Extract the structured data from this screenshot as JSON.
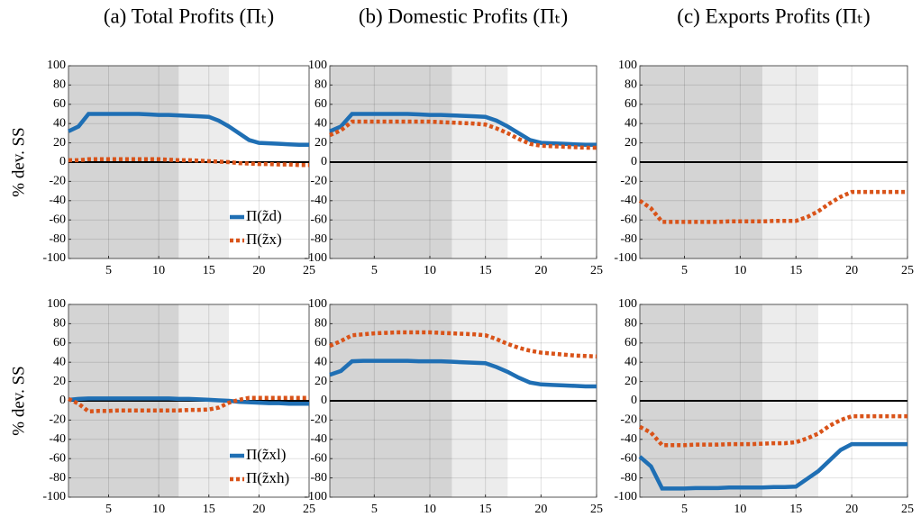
{
  "chart_data": [
    {
      "type": "line",
      "title": "(a) Total Profits (Πₜ)",
      "ylabel": "% dev. SS",
      "legend": true,
      "legend_loc": "lower right",
      "x": [
        1,
        2,
        3,
        4,
        5,
        6,
        7,
        8,
        9,
        10,
        11,
        12,
        13,
        14,
        15,
        16,
        17,
        18,
        19,
        20,
        21,
        22,
        23,
        24,
        25
      ],
      "series": [
        {
          "name": "Π(z̃d)",
          "color": "#1f6fb4",
          "style": "solid",
          "values": [
            32,
            37,
            50,
            50,
            50,
            50,
            50,
            50,
            49.5,
            49,
            49,
            48.5,
            48,
            47.5,
            47,
            43,
            37,
            30,
            23,
            20,
            19.5,
            19,
            18.5,
            18,
            18
          ]
        },
        {
          "name": "Π(z̃x)",
          "color": "#d95319",
          "style": "dotted",
          "values": [
            2,
            2,
            3,
            3,
            3,
            3,
            3,
            3,
            3,
            3,
            2.5,
            2,
            2,
            1.5,
            1,
            0.5,
            0,
            -1,
            -1.5,
            -2,
            -2,
            -2.5,
            -2.5,
            -3,
            -3
          ]
        }
      ],
      "xlim": [
        1,
        25
      ],
      "ylim": [
        -100,
        100
      ],
      "xticks": [
        5,
        10,
        15,
        20,
        25
      ],
      "yticks": [
        -100,
        -80,
        -60,
        -40,
        -20,
        0,
        20,
        40,
        60,
        80,
        100
      ],
      "grid": true,
      "zero_line": true,
      "shaded_regions": [
        {
          "range": [
            1,
            12
          ],
          "color": "#d4d4d4"
        },
        {
          "range": [
            12,
            17
          ],
          "color": "#ececec"
        }
      ]
    },
    {
      "type": "line",
      "title": "(b) Domestic Profits (Πₜ)",
      "x": [
        1,
        2,
        3,
        4,
        5,
        6,
        7,
        8,
        9,
        10,
        11,
        12,
        13,
        14,
        15,
        16,
        17,
        18,
        19,
        20,
        21,
        22,
        23,
        24,
        25
      ],
      "series": [
        {
          "color": "#1f6fb4",
          "style": "solid",
          "values": [
            32,
            37,
            50,
            50,
            50,
            50,
            50,
            50,
            49.5,
            49,
            49,
            48.5,
            48,
            47.5,
            47,
            43,
            37,
            30,
            23,
            20,
            19.5,
            19,
            18.5,
            18,
            18
          ]
        },
        {
          "color": "#d95319",
          "style": "dotted",
          "values": [
            28,
            33,
            42,
            42,
            42,
            42,
            42,
            42,
            42,
            42,
            41.5,
            41,
            40.5,
            40,
            39,
            35,
            30,
            24,
            19,
            17,
            16.5,
            16,
            15.5,
            15,
            15
          ]
        }
      ],
      "xlim": [
        1,
        25
      ],
      "ylim": [
        -100,
        100
      ],
      "xticks": [
        5,
        10,
        15,
        20,
        25
      ],
      "yticks": [
        -100,
        -80,
        -60,
        -40,
        -20,
        0,
        20,
        40,
        60,
        80,
        100
      ],
      "grid": true,
      "zero_line": true,
      "shaded_regions": [
        {
          "range": [
            1,
            12
          ],
          "color": "#d4d4d4"
        },
        {
          "range": [
            12,
            17
          ],
          "color": "#ececec"
        }
      ]
    },
    {
      "type": "line",
      "title": "(c) Exports Profits (Πₜ)",
      "x": [
        1,
        2,
        3,
        4,
        5,
        6,
        7,
        8,
        9,
        10,
        11,
        12,
        13,
        14,
        15,
        16,
        17,
        18,
        19,
        20,
        21,
        22,
        23,
        24,
        25
      ],
      "series": [
        {
          "color": "#d95319",
          "style": "dotted",
          "values": [
            -40,
            -48,
            -62,
            -62,
            -62,
            -62,
            -62,
            -62,
            -61.5,
            -61.5,
            -61.5,
            -61.5,
            -61,
            -61,
            -61,
            -57,
            -51,
            -43,
            -36,
            -31,
            -31,
            -31,
            -31,
            -31,
            -31
          ]
        }
      ],
      "xlim": [
        1,
        25
      ],
      "ylim": [
        -100,
        100
      ],
      "xticks": [
        5,
        10,
        15,
        20,
        25
      ],
      "yticks": [
        -100,
        -80,
        -60,
        -40,
        -20,
        0,
        20,
        40,
        60,
        80,
        100
      ],
      "grid": true,
      "zero_line": true,
      "shaded_regions": [
        {
          "range": [
            1,
            12
          ],
          "color": "#d4d4d4"
        },
        {
          "range": [
            12,
            17
          ],
          "color": "#ececec"
        }
      ]
    },
    {
      "type": "line",
      "ylabel": "% dev. SS",
      "legend": true,
      "legend_loc": "lower right",
      "x": [
        1,
        2,
        3,
        4,
        5,
        6,
        7,
        8,
        9,
        10,
        11,
        12,
        13,
        14,
        15,
        16,
        17,
        18,
        19,
        20,
        21,
        22,
        23,
        24,
        25
      ],
      "series": [
        {
          "name": "Π(z̃xl)",
          "color": "#1f6fb4",
          "style": "solid",
          "values": [
            1,
            2,
            2.5,
            2.5,
            2.5,
            2.5,
            2.5,
            2.5,
            2.5,
            2.5,
            2.5,
            2,
            2,
            1.5,
            1,
            0.5,
            0,
            -1,
            -1.5,
            -2,
            -2.5,
            -2.5,
            -3,
            -3,
            -3
          ]
        },
        {
          "name": "Π(z̃xh)",
          "color": "#d95319",
          "style": "dotted",
          "values": [
            2,
            -3,
            -11,
            -10.5,
            -10.5,
            -10,
            -10,
            -10,
            -10,
            -10,
            -10,
            -10,
            -9.5,
            -9.5,
            -9,
            -7,
            -2,
            1,
            3,
            3,
            3,
            3,
            3,
            3,
            3
          ]
        }
      ],
      "xlim": [
        1,
        25
      ],
      "ylim": [
        -100,
        100
      ],
      "xticks": [
        5,
        10,
        15,
        20,
        25
      ],
      "yticks": [
        -100,
        -80,
        -60,
        -40,
        -20,
        0,
        20,
        40,
        60,
        80,
        100
      ],
      "grid": true,
      "zero_line": true,
      "shaded_regions": [
        {
          "range": [
            1,
            12
          ],
          "color": "#d4d4d4"
        },
        {
          "range": [
            12,
            17
          ],
          "color": "#ececec"
        }
      ]
    },
    {
      "type": "line",
      "x": [
        1,
        2,
        3,
        4,
        5,
        6,
        7,
        8,
        9,
        10,
        11,
        12,
        13,
        14,
        15,
        16,
        17,
        18,
        19,
        20,
        21,
        22,
        23,
        24,
        25
      ],
      "series": [
        {
          "color": "#1f6fb4",
          "style": "solid",
          "values": [
            27,
            31,
            41,
            41.5,
            41.5,
            41.5,
            41.5,
            41.5,
            41,
            41,
            41,
            40.5,
            40,
            39.5,
            39,
            35,
            30,
            24,
            19,
            17,
            16.5,
            16,
            15.5,
            15,
            15
          ]
        },
        {
          "color": "#d95319",
          "style": "dotted",
          "values": [
            57,
            62,
            68,
            69,
            70,
            70.5,
            71,
            71,
            71,
            71,
            70.5,
            70,
            69.5,
            69,
            68,
            64,
            59,
            55,
            52,
            50,
            49,
            48,
            47,
            46.5,
            46
          ]
        }
      ],
      "xlim": [
        1,
        25
      ],
      "ylim": [
        -100,
        100
      ],
      "xticks": [
        5,
        10,
        15,
        20,
        25
      ],
      "yticks": [
        -100,
        -80,
        -60,
        -40,
        -20,
        0,
        20,
        40,
        60,
        80,
        100
      ],
      "grid": true,
      "zero_line": true,
      "shaded_regions": [
        {
          "range": [
            1,
            12
          ],
          "color": "#d4d4d4"
        },
        {
          "range": [
            12,
            17
          ],
          "color": "#ececec"
        }
      ]
    },
    {
      "type": "line",
      "x": [
        1,
        2,
        3,
        4,
        5,
        6,
        7,
        8,
        9,
        10,
        11,
        12,
        13,
        14,
        15,
        16,
        17,
        18,
        19,
        20,
        21,
        22,
        23,
        24,
        25
      ],
      "series": [
        {
          "color": "#1f6fb4",
          "style": "solid",
          "values": [
            -58,
            -68,
            -91,
            -91,
            -91,
            -90.5,
            -90.5,
            -90.5,
            -90,
            -90,
            -90,
            -90,
            -89.5,
            -89.5,
            -89,
            -81,
            -73,
            -62,
            -51,
            -45,
            -45,
            -45,
            -45,
            -45,
            -45
          ]
        },
        {
          "color": "#d95319",
          "style": "dotted",
          "values": [
            -27,
            -33,
            -46,
            -46,
            -46,
            -45.5,
            -45.5,
            -45.5,
            -45,
            -45,
            -45,
            -44.5,
            -44,
            -44,
            -43,
            -39,
            -34,
            -26,
            -20,
            -16,
            -16,
            -16,
            -16,
            -16,
            -16
          ]
        }
      ],
      "xlim": [
        1,
        25
      ],
      "ylim": [
        -100,
        100
      ],
      "xticks": [
        5,
        10,
        15,
        20,
        25
      ],
      "yticks": [
        -100,
        -80,
        -60,
        -40,
        -20,
        0,
        20,
        40,
        60,
        80,
        100
      ],
      "grid": true,
      "zero_line": true,
      "shaded_regions": [
        {
          "range": [
            1,
            12
          ],
          "color": "#d4d4d4"
        },
        {
          "range": [
            12,
            17
          ],
          "color": "#ececec"
        }
      ]
    }
  ]
}
